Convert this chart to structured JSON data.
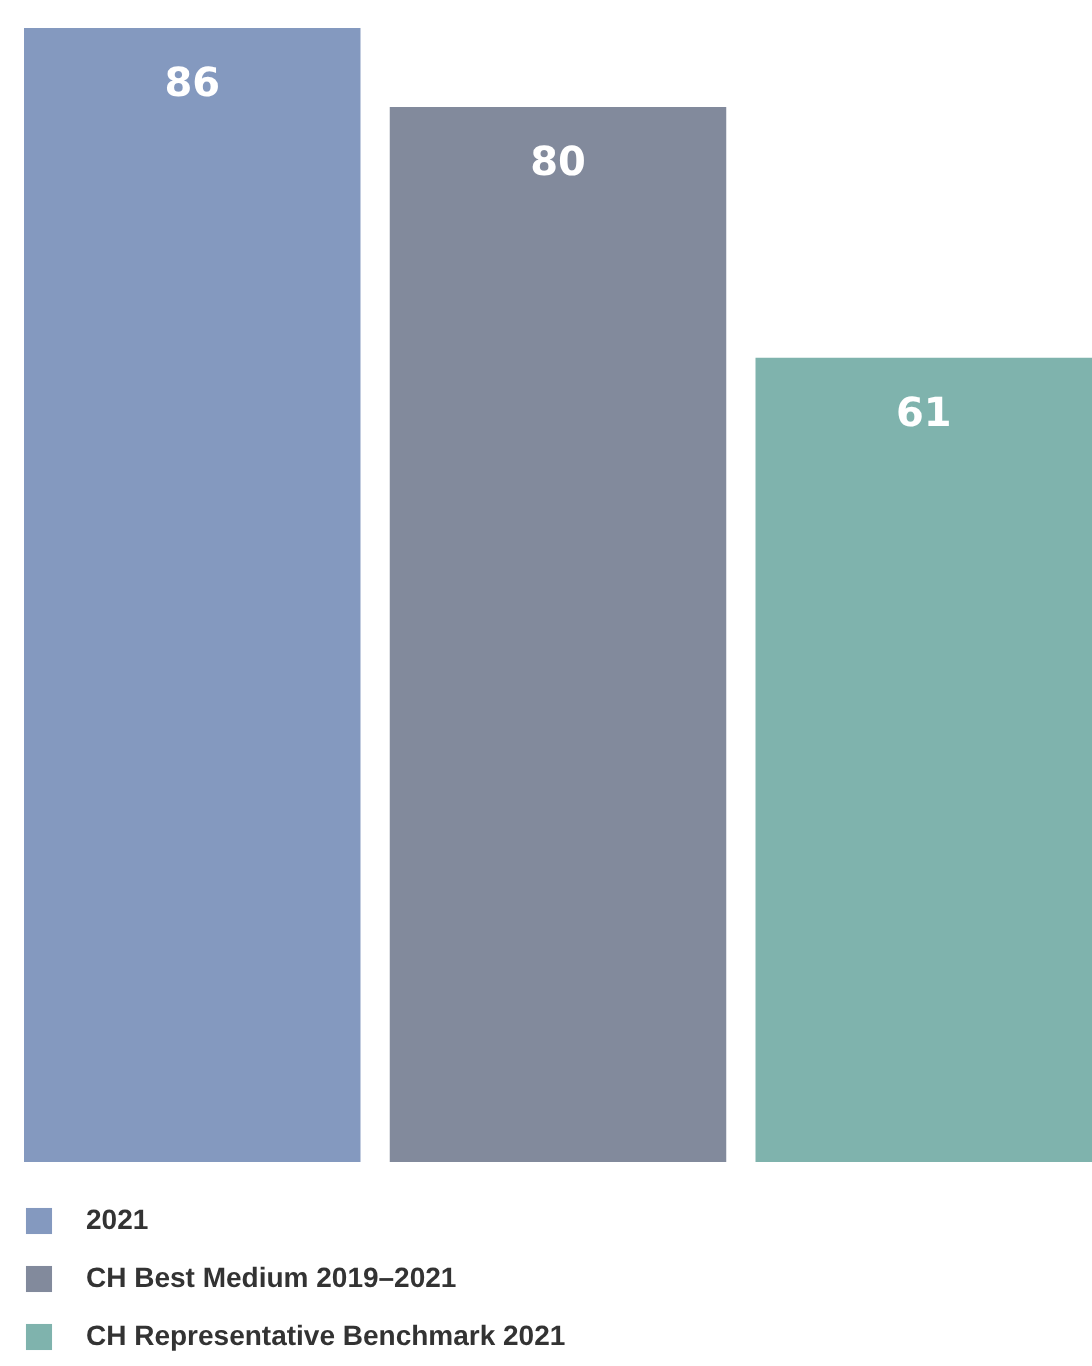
{
  "chart_data": {
    "type": "bar",
    "categories": [
      null
    ],
    "data_labels": true,
    "legend": "bottom left",
    "series": [
      {
        "name": "2021",
        "color": "#8499bf",
        "values": [
          86
        ]
      },
      {
        "name": "CH Best Medium 2019–2021",
        "color": "#828a9c",
        "values": [
          80
        ]
      },
      {
        "name": "CH Representative Benchmark 2021",
        "color": "#7fb3ad",
        "values": [
          61
        ]
      }
    ]
  }
}
